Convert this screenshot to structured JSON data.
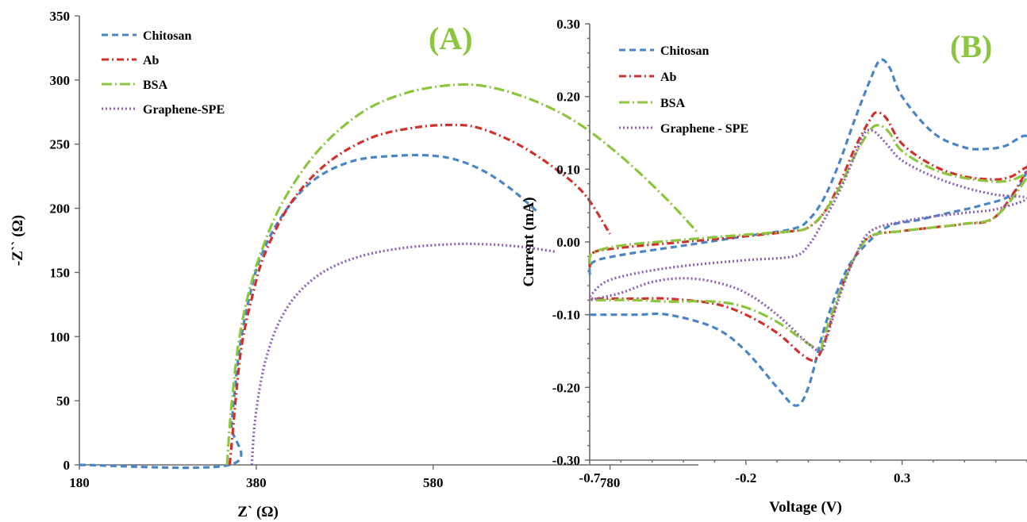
{
  "colors": {
    "chitosan": "#4a86c6",
    "ab": "#d0312d",
    "bsa": "#8cc63f",
    "graphene": "#8b5fb5",
    "tag": "#8cc63f",
    "axis": "#6b6b6b"
  },
  "chart_data": [
    {
      "type": "scatter",
      "panel_tag": "(A)",
      "xlabel": "Z` (Ω)",
      "ylabel": "-Z`` (Ω)",
      "xlim": [
        180,
        880
      ],
      "ylim": [
        0,
        350
      ],
      "xticks": [
        180,
        380,
        580,
        780
      ],
      "yticks": [
        0,
        50,
        100,
        150,
        200,
        250,
        300,
        350
      ],
      "legend_position": "top-left",
      "series": [
        {
          "name": "Chitosan",
          "color_key": "chitosan",
          "dash": "8,5",
          "points": [
            [
              180,
              0
            ],
            [
              350,
              0
            ],
            [
              352,
              30
            ],
            [
              356,
              60
            ],
            [
              362,
              95
            ],
            [
              372,
              130
            ],
            [
              385,
              162
            ],
            [
              410,
              195
            ],
            [
              445,
              222
            ],
            [
              490,
              237
            ],
            [
              540,
              241
            ],
            [
              580,
              241
            ],
            [
              610,
              237
            ],
            [
              640,
              228
            ],
            [
              670,
              214
            ],
            [
              700,
              196
            ]
          ]
        },
        {
          "name": "Ab",
          "color_key": "ab",
          "dash": "9,4,2,4",
          "points": [
            [
              350,
              0
            ],
            [
              354,
              30
            ],
            [
              358,
              60
            ],
            [
              364,
              95
            ],
            [
              375,
              130
            ],
            [
              390,
              165
            ],
            [
              420,
              205
            ],
            [
              460,
              235
            ],
            [
              510,
              255
            ],
            [
              560,
              263
            ],
            [
              600,
              265
            ],
            [
              630,
              263
            ],
            [
              670,
              252
            ],
            [
              710,
              235
            ],
            [
              750,
              212
            ],
            [
              780,
              180
            ]
          ]
        },
        {
          "name": "BSA",
          "color_key": "bsa",
          "dash": "13,4,2,4",
          "points": [
            [
              347,
              0
            ],
            [
              350,
              30
            ],
            [
              354,
              60
            ],
            [
              360,
              95
            ],
            [
              370,
              130
            ],
            [
              385,
              165
            ],
            [
              410,
              205
            ],
            [
              450,
              245
            ],
            [
              500,
              275
            ],
            [
              550,
              290
            ],
            [
              600,
              296
            ],
            [
              640,
              295
            ],
            [
              690,
              285
            ],
            [
              740,
              268
            ],
            [
              790,
              242
            ],
            [
              840,
              210
            ],
            [
              878,
              182
            ]
          ]
        },
        {
          "name": "Graphene-SPE",
          "color_key": "graphene",
          "dash": "2,3",
          "points": [
            [
              375,
              0
            ],
            [
              378,
              30
            ],
            [
              384,
              60
            ],
            [
              392,
              85
            ],
            [
              405,
              110
            ],
            [
              425,
              132
            ],
            [
              455,
              150
            ],
            [
              495,
              162
            ],
            [
              545,
              169
            ],
            [
              600,
              172
            ],
            [
              640,
              172
            ],
            [
              680,
              170
            ],
            [
              720,
              166
            ]
          ]
        }
      ]
    },
    {
      "type": "line",
      "panel_tag": "(B)",
      "xlabel": "Voltage (V)",
      "ylabel": "Current (mA)",
      "xlim": [
        -0.7,
        0.7
      ],
      "ylim": [
        -0.3,
        0.3
      ],
      "xticks": [
        -0.7,
        -0.2,
        0.3
      ],
      "xtick_labels": [
        "-0.7",
        "-0.2",
        "0.3"
      ],
      "yticks": [
        -0.3,
        -0.2,
        -0.1,
        0.0,
        0.1,
        0.2,
        0.3
      ],
      "ytick_labels": [
        "-0.30",
        "-0.20",
        "-0.10",
        "0.00",
        "0.10",
        "0.20",
        "0.30"
      ],
      "legend_position": "top-left",
      "series": [
        {
          "name": "Chitosan",
          "color_key": "chitosan",
          "dash": "8,5",
          "points": [
            [
              -0.7,
              -0.045
            ],
            [
              -0.69,
              -0.028
            ],
            [
              -0.6,
              -0.018
            ],
            [
              -0.4,
              -0.005
            ],
            [
              -0.2,
              0.008
            ],
            [
              -0.05,
              0.018
            ],
            [
              0.0,
              0.03
            ],
            [
              0.05,
              0.06
            ],
            [
              0.1,
              0.11
            ],
            [
              0.15,
              0.17
            ],
            [
              0.2,
              0.225
            ],
            [
              0.23,
              0.25
            ],
            [
              0.26,
              0.24
            ],
            [
              0.3,
              0.2
            ],
            [
              0.4,
              0.15
            ],
            [
              0.5,
              0.13
            ],
            [
              0.57,
              0.128
            ],
            [
              0.63,
              0.132
            ],
            [
              0.7,
              0.145
            ],
            [
              0.7,
              0.1
            ],
            [
              0.65,
              0.065
            ],
            [
              0.55,
              0.05
            ],
            [
              0.45,
              0.04
            ],
            [
              0.35,
              0.03
            ],
            [
              0.25,
              0.02
            ],
            [
              0.15,
              -0.02
            ],
            [
              0.1,
              -0.06
            ],
            [
              0.05,
              -0.12
            ],
            [
              0.0,
              -0.2
            ],
            [
              -0.04,
              -0.225
            ],
            [
              -0.1,
              -0.2
            ],
            [
              -0.2,
              -0.15
            ],
            [
              -0.3,
              -0.118
            ],
            [
              -0.45,
              -0.1
            ],
            [
              -0.55,
              -0.1
            ],
            [
              -0.7,
              -0.1
            ]
          ]
        },
        {
          "name": "Ab",
          "color_key": "ab",
          "dash": "9,4,2,4",
          "points": [
            [
              -0.7,
              -0.035
            ],
            [
              -0.69,
              -0.015
            ],
            [
              -0.6,
              -0.008
            ],
            [
              -0.4,
              0.0
            ],
            [
              -0.2,
              0.008
            ],
            [
              -0.05,
              0.015
            ],
            [
              0.0,
              0.02
            ],
            [
              0.05,
              0.04
            ],
            [
              0.1,
              0.08
            ],
            [
              0.15,
              0.13
            ],
            [
              0.2,
              0.17
            ],
            [
              0.22,
              0.178
            ],
            [
              0.25,
              0.17
            ],
            [
              0.3,
              0.135
            ],
            [
              0.4,
              0.105
            ],
            [
              0.5,
              0.09
            ],
            [
              0.6,
              0.086
            ],
            [
              0.65,
              0.09
            ],
            [
              0.7,
              0.1
            ],
            [
              0.6,
              0.035
            ],
            [
              0.5,
              0.025
            ],
            [
              0.4,
              0.02
            ],
            [
              0.3,
              0.015
            ],
            [
              0.2,
              0.008
            ],
            [
              0.15,
              -0.02
            ],
            [
              0.1,
              -0.07
            ],
            [
              0.05,
              -0.14
            ],
            [
              0.02,
              -0.162
            ],
            [
              -0.02,
              -0.155
            ],
            [
              -0.1,
              -0.125
            ],
            [
              -0.2,
              -0.1
            ],
            [
              -0.3,
              -0.085
            ],
            [
              -0.45,
              -0.078
            ],
            [
              -0.55,
              -0.078
            ],
            [
              -0.7,
              -0.078
            ]
          ]
        },
        {
          "name": "BSA",
          "color_key": "bsa",
          "dash": "13,4,2,4",
          "points": [
            [
              -0.7,
              -0.03
            ],
            [
              -0.69,
              -0.015
            ],
            [
              -0.6,
              -0.005
            ],
            [
              -0.4,
              0.003
            ],
            [
              -0.2,
              0.01
            ],
            [
              -0.05,
              0.015
            ],
            [
              0.0,
              0.02
            ],
            [
              0.05,
              0.04
            ],
            [
              0.1,
              0.075
            ],
            [
              0.15,
              0.12
            ],
            [
              0.2,
              0.155
            ],
            [
              0.23,
              0.16
            ],
            [
              0.26,
              0.15
            ],
            [
              0.3,
              0.125
            ],
            [
              0.4,
              0.1
            ],
            [
              0.5,
              0.088
            ],
            [
              0.6,
              0.083
            ],
            [
              0.65,
              0.085
            ],
            [
              0.7,
              0.09
            ],
            [
              0.6,
              0.035
            ],
            [
              0.5,
              0.025
            ],
            [
              0.4,
              0.02
            ],
            [
              0.3,
              0.015
            ],
            [
              0.2,
              0.008
            ],
            [
              0.15,
              -0.02
            ],
            [
              0.1,
              -0.07
            ],
            [
              0.05,
              -0.13
            ],
            [
              0.04,
              -0.148
            ],
            [
              0.0,
              -0.14
            ],
            [
              -0.1,
              -0.11
            ],
            [
              -0.2,
              -0.09
            ],
            [
              -0.3,
              -0.082
            ],
            [
              -0.45,
              -0.082
            ],
            [
              -0.55,
              -0.08
            ],
            [
              -0.7,
              -0.08
            ]
          ]
        },
        {
          "name": "Graphene - SPE",
          "color_key": "graphene",
          "dash": "2,3",
          "points": [
            [
              -0.7,
              -0.075
            ],
            [
              -0.65,
              -0.055
            ],
            [
              -0.55,
              -0.043
            ],
            [
              -0.4,
              -0.033
            ],
            [
              -0.2,
              -0.025
            ],
            [
              -0.05,
              -0.02
            ],
            [
              0.0,
              -0.005
            ],
            [
              0.05,
              0.03
            ],
            [
              0.1,
              0.07
            ],
            [
              0.15,
              0.12
            ],
            [
              0.18,
              0.15
            ],
            [
              0.21,
              0.152
            ],
            [
              0.25,
              0.135
            ],
            [
              0.3,
              0.112
            ],
            [
              0.4,
              0.09
            ],
            [
              0.5,
              0.075
            ],
            [
              0.6,
              0.065
            ],
            [
              0.7,
              0.06
            ],
            [
              0.6,
              0.045
            ],
            [
              0.5,
              0.04
            ],
            [
              0.4,
              0.035
            ],
            [
              0.3,
              0.028
            ],
            [
              0.2,
              0.015
            ],
            [
              0.15,
              -0.02
            ],
            [
              0.1,
              -0.075
            ],
            [
              0.06,
              -0.13
            ],
            [
              0.04,
              -0.15
            ],
            [
              0.0,
              -0.14
            ],
            [
              -0.1,
              -0.1
            ],
            [
              -0.2,
              -0.07
            ],
            [
              -0.3,
              -0.055
            ],
            [
              -0.4,
              -0.05
            ],
            [
              -0.5,
              -0.055
            ],
            [
              -0.6,
              -0.07
            ],
            [
              -0.7,
              -0.08
            ]
          ]
        }
      ]
    }
  ]
}
